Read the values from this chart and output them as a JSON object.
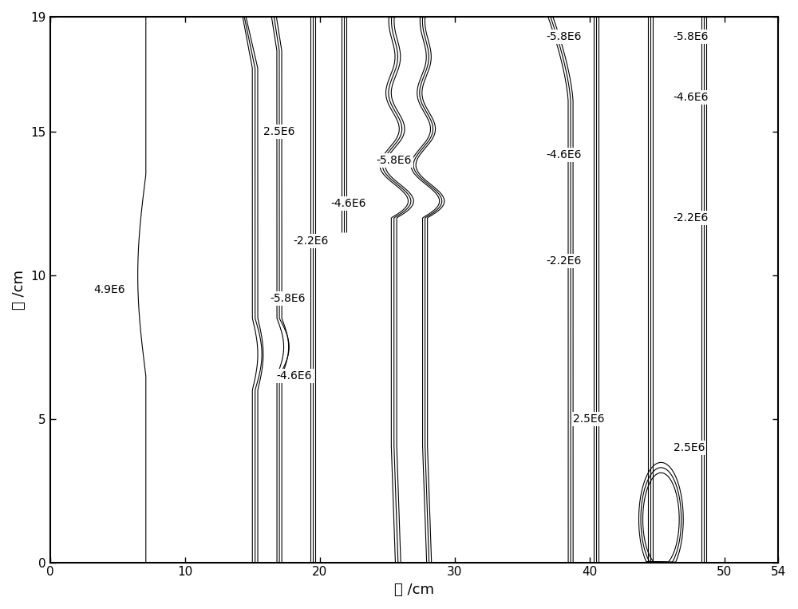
{
  "xlim": [
    0,
    54
  ],
  "ylim": [
    0,
    19
  ],
  "xlabel": "长 /cm",
  "ylabel": "宽 /cm",
  "xticks": [
    0,
    10,
    20,
    30,
    40,
    50,
    54
  ],
  "yticks": [
    0,
    5,
    10,
    15,
    19
  ],
  "line_color": "#000000",
  "background_color": "#ffffff",
  "label_fontsize": 10,
  "axes_fontsize": 13,
  "tick_fontsize": 11,
  "figsize": [
    10.0,
    7.63
  ],
  "dpi": 100,
  "label_positions": [
    [
      3.2,
      9.5,
      "4.9E6"
    ],
    [
      15.8,
      15.0,
      "2.5E6"
    ],
    [
      18.0,
      11.2,
      "-2.2E6"
    ],
    [
      16.3,
      9.2,
      "-5.8E6"
    ],
    [
      16.8,
      6.5,
      "-4.6E6"
    ],
    [
      20.8,
      12.5,
      "-4.6E6"
    ],
    [
      24.2,
      14.0,
      "-5.8E6"
    ],
    [
      36.8,
      18.3,
      "-5.8E6"
    ],
    [
      36.8,
      14.2,
      "-4.6E6"
    ],
    [
      36.8,
      10.5,
      "-2.2E6"
    ],
    [
      38.8,
      5.0,
      "2.5E6"
    ],
    [
      46.2,
      18.3,
      "-5.8E6"
    ],
    [
      46.2,
      16.2,
      "-4.6E6"
    ],
    [
      46.2,
      12.0,
      "-2.2E6"
    ],
    [
      46.2,
      4.0,
      "2.5E6"
    ]
  ],
  "line_lw_thin": 0.8,
  "line_lw_thick": 1.4
}
